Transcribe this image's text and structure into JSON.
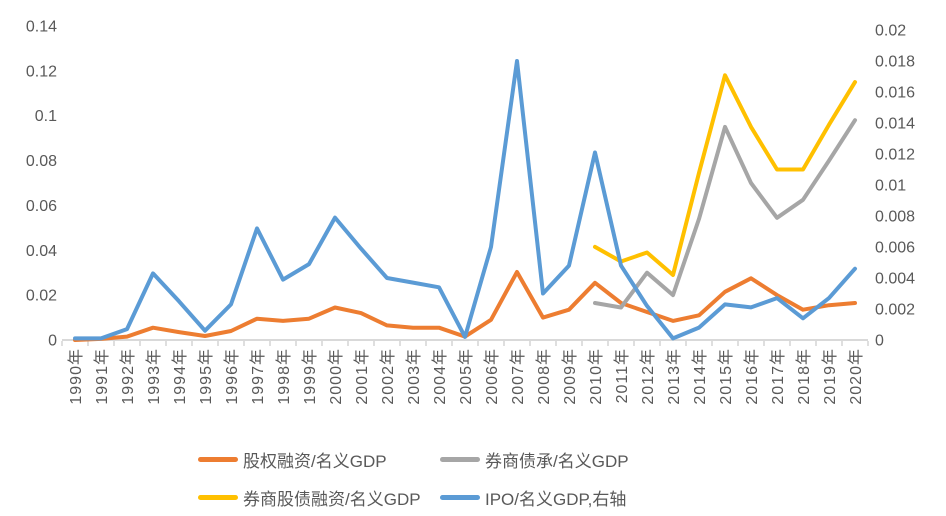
{
  "chart_data": {
    "type": "line",
    "title": "",
    "categories": [
      "1990年",
      "1991年",
      "1992年",
      "1993年",
      "1994年",
      "1995年",
      "1996年",
      "1997年",
      "1998年",
      "1999年",
      "2000年",
      "2001年",
      "2002年",
      "2003年",
      "2004年",
      "2005年",
      "2006年",
      "2007年",
      "2008年",
      "2009年",
      "2010年",
      "2011年",
      "2012年",
      "2013年",
      "2014年",
      "2015年",
      "2016年",
      "2017年",
      "2018年",
      "2019年",
      "2020年"
    ],
    "series": [
      {
        "name": "股权融资/名义GDP",
        "axis": "left",
        "color": "#ED7D31",
        "values": [
          0,
          0.0005,
          0.0015,
          0.0055,
          0.0035,
          0.0018,
          0.004,
          0.0095,
          0.0085,
          0.0095,
          0.0145,
          0.012,
          0.0065,
          0.0055,
          0.0055,
          0.0015,
          0.009,
          0.0303,
          0.01,
          0.0135,
          0.0255,
          0.0165,
          0.0125,
          0.0085,
          0.011,
          0.0215,
          0.0275,
          0.02,
          0.0135,
          0.0155,
          0.0165
        ]
      },
      {
        "name": "券商债承/名义GDP",
        "axis": "left",
        "color": "#A6A6A6",
        "values": [
          null,
          null,
          null,
          null,
          null,
          null,
          null,
          null,
          null,
          null,
          null,
          null,
          null,
          null,
          null,
          null,
          null,
          null,
          null,
          null,
          0.0165,
          0.0145,
          0.03,
          0.02,
          0.054,
          0.095,
          0.07,
          0.0545,
          0.0625,
          0.08,
          0.098
        ]
      },
      {
        "name": "券商股债融资/名义GDP",
        "axis": "left",
        "color": "#FFC000",
        "values": [
          null,
          null,
          null,
          null,
          null,
          null,
          null,
          null,
          null,
          null,
          null,
          null,
          null,
          null,
          null,
          null,
          null,
          null,
          null,
          null,
          0.0415,
          0.035,
          0.039,
          0.029,
          0.0745,
          0.118,
          0.095,
          0.076,
          0.076,
          0.096,
          0.115
        ]
      },
      {
        "name": "IPO/名义GDP,右轴",
        "axis": "right",
        "color": "#5B9BD5",
        "values": [
          0.0001,
          0.0001,
          0.0007,
          0.0043,
          0.0025,
          0.0006,
          0.0023,
          0.0072,
          0.0039,
          0.0049,
          0.0079,
          0.0059,
          0.004,
          0.0037,
          0.0034,
          0.0002,
          0.006,
          0.018,
          0.003,
          0.0048,
          0.0121,
          0.0048,
          0.0022,
          0.0001,
          0.0008,
          0.0023,
          0.0021,
          0.0027,
          0.0014,
          0.0027,
          0.0046
        ]
      }
    ],
    "left_axis": {
      "min": 0,
      "max": 0.14,
      "step": 0.02,
      "tick_labels": [
        "0.14",
        "0.12",
        "0.1",
        "0.08",
        "0.06",
        "0.04",
        "0.02",
        "0"
      ]
    },
    "right_axis": {
      "min": 0,
      "max": 0.02,
      "step": 0.002,
      "tick_labels": [
        "0.02",
        "0.018",
        "0.016",
        "0.014",
        "0.012",
        "0.01",
        "0.008",
        "0.006",
        "0.004",
        "0.002",
        "0"
      ]
    },
    "grid": false,
    "legend_position": "bottom",
    "colors": {
      "axis_text": "#595959",
      "axis_line": "#D9D9D9",
      "tick": "#BFBFBF",
      "background": "#FFFFFF"
    }
  }
}
